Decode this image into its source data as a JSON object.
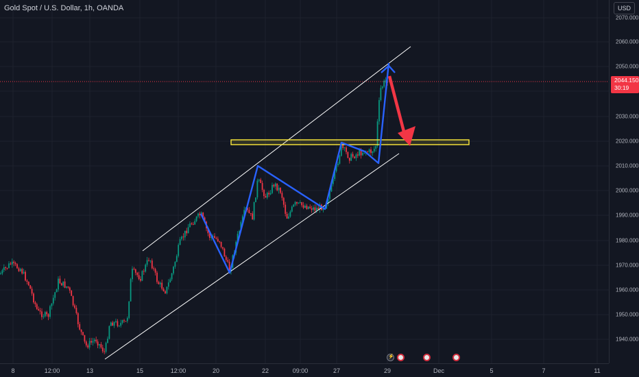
{
  "header": {
    "symbol_title": "Gold Spot / U.S. Dollar, 1h, OANDA"
  },
  "price_axis": {
    "currency": "USD",
    "ticks": [
      "2070.000",
      "2060.000",
      "2050.000",
      "2040.000",
      "2030.000",
      "2020.000",
      "2010.000",
      "2000.000",
      "1990.000",
      "1980.000",
      "1970.000",
      "1960.000",
      "1950.000",
      "1940.000"
    ],
    "last_price": "2044.150",
    "countdown": "30:19"
  },
  "time_axis": {
    "labels": [
      "8",
      "12:00",
      "13",
      "15",
      "12:00",
      "20",
      "22",
      "09:00",
      "27",
      "29",
      "Dec",
      "5",
      "7",
      "11"
    ]
  },
  "events": [
    {
      "icon": "lightning-event-icon"
    },
    {
      "icon": "us-flag-event-icon"
    },
    {
      "icon": "us-flag-event-icon"
    },
    {
      "icon": "us-flag-event-icon"
    }
  ],
  "colors": {
    "background": "#131722",
    "up_candle": "#089981",
    "down_candle": "#f23645",
    "channel_line": "#ffffff",
    "zigzag": "#2962ff",
    "zone": "#ffeb3b",
    "arrow": "#f23645",
    "last_price_line": "#f23645"
  },
  "annotations": {
    "channel": "ascending-channel",
    "zigzag": "blue-zigzag-pattern",
    "zone": "yellow-horizontal-support-zone",
    "arrow": "red-downward-arrow"
  }
}
